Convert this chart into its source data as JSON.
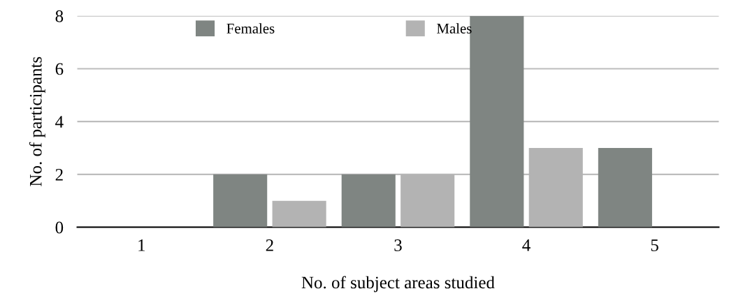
{
  "chart_data": {
    "type": "bar",
    "xlabel": "No. of subject areas studied",
    "ylabel": "No. of participants",
    "categories": [
      "1",
      "2",
      "3",
      "4",
      "5"
    ],
    "series": [
      {
        "name": "Females",
        "color": "#7f8582",
        "values": [
          0,
          2,
          2,
          8,
          3
        ]
      },
      {
        "name": "Males",
        "color": "#b3b3b3",
        "values": [
          0,
          1,
          2,
          3,
          0
        ]
      }
    ],
    "ylim": [
      0,
      8
    ],
    "yticks": [
      0,
      2,
      4,
      6,
      8
    ],
    "grid": "y",
    "legend": "top"
  }
}
